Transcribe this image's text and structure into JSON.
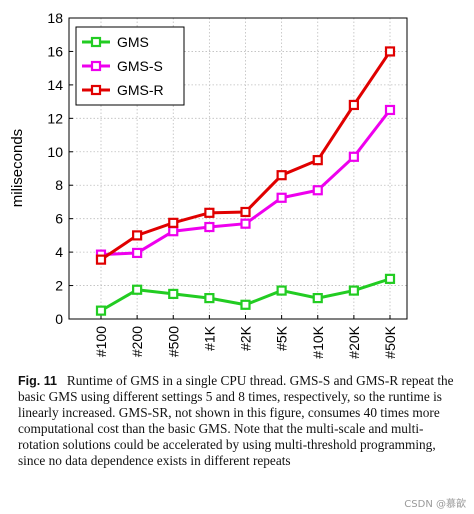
{
  "chart_data": {
    "type": "line",
    "categories": [
      "#100",
      "#200",
      "#500",
      "#1K",
      "#2K",
      "#5K",
      "#10K",
      "#20K",
      "#50K"
    ],
    "series": [
      {
        "name": "GMS",
        "color": "#22cc22",
        "values": [
          0.5,
          1.75,
          1.5,
          1.25,
          0.85,
          1.7,
          1.25,
          1.7,
          2.4
        ]
      },
      {
        "name": "GMS-S",
        "color": "#ee00ee",
        "values": [
          3.85,
          3.95,
          5.25,
          5.5,
          5.7,
          7.25,
          7.7,
          9.7,
          12.5
        ]
      },
      {
        "name": "GMS-R",
        "color": "#e00000",
        "values": [
          3.55,
          5.0,
          5.75,
          6.35,
          6.4,
          8.6,
          9.5,
          12.8,
          16.0
        ]
      }
    ],
    "xlabel": "",
    "ylabel": "miliseconds",
    "ylim": [
      0,
      18
    ],
    "yticks": [
      0,
      2,
      4,
      6,
      8,
      10,
      12,
      14,
      16,
      18
    ],
    "grid": true,
    "legend": "top-left",
    "marker": "square"
  },
  "caption": {
    "label": "Fig. 11",
    "text": "Runtime of GMS in a single CPU thread. GMS-S and GMS-R repeat the basic GMS using different settings 5 and 8 times, respectively, so the runtime is linearly increased. GMS-SR, not shown in this figure, consumes 40 times more computational cost than the basic GMS. Note that the multi-scale and multi-rotation solutions could be accelerated by using multi-threshold programming, since no data dependence exists in different repeats"
  },
  "watermark": "CSDN @慕歆"
}
